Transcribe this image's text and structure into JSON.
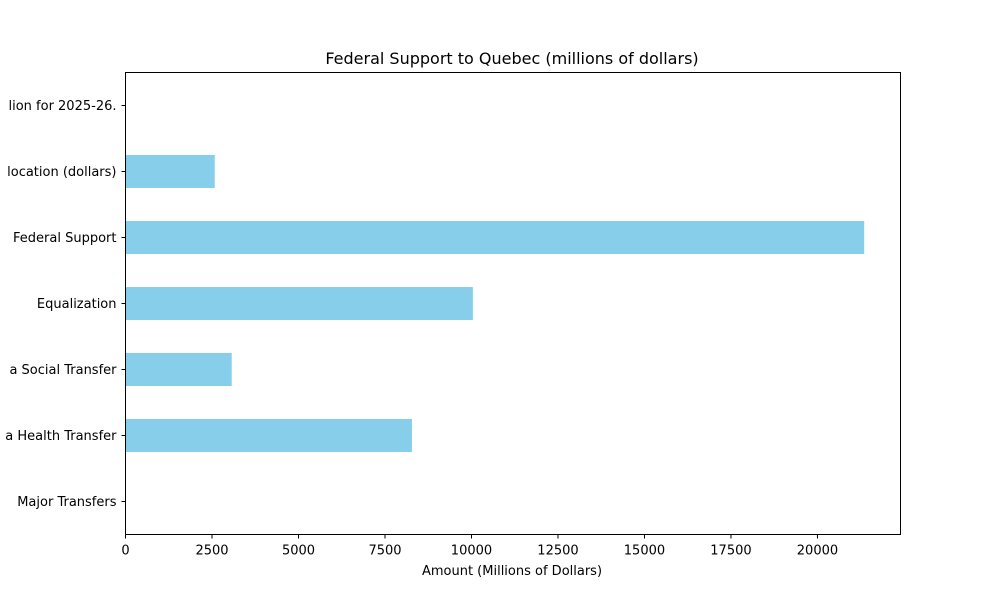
{
  "chart_data": {
    "type": "bar",
    "orientation": "horizontal",
    "title": "Federal Support to Quebec (millions of dollars)",
    "xlabel": "Amount (Millions of Dollars)",
    "ylabel": "",
    "categories": [
      "Major Transfers",
      "a Health Transfer",
      "a Social Transfer",
      "Equalization",
      " Federal Support",
      "location (dollars)",
      "lion for 2025-26."
    ],
    "values": [
      0,
      8280,
      3070,
      10040,
      21350,
      2580,
      0
    ],
    "xlim": [
      0,
      22400
    ],
    "xticks": [
      0,
      2500,
      5000,
      7500,
      10000,
      12500,
      15000,
      17500,
      20000
    ],
    "bar_color": "#87ceeb",
    "grid": false,
    "legend": "none"
  }
}
